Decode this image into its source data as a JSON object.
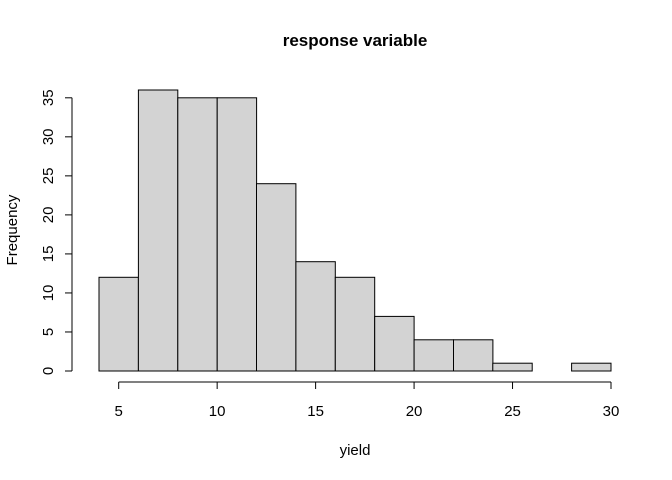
{
  "chart_data": {
    "type": "bar",
    "subtype": "histogram",
    "title": "response variable",
    "xlabel": "yield",
    "ylabel": "Frequency",
    "bin_edges": [
      4,
      6,
      8,
      10,
      12,
      14,
      16,
      18,
      20,
      22,
      24,
      26,
      28,
      30
    ],
    "values": [
      12,
      36,
      35,
      35,
      24,
      14,
      12,
      7,
      4,
      4,
      1,
      0,
      1
    ],
    "xlim": [
      4,
      30
    ],
    "ylim": [
      0,
      36
    ],
    "x_ticks": [
      5,
      10,
      15,
      20,
      25,
      30
    ],
    "y_ticks": [
      0,
      5,
      10,
      15,
      20,
      25,
      30,
      35
    ],
    "bar_color": "#d3d3d3",
    "edge_color": "#000000",
    "grid": false,
    "legend": "none"
  }
}
